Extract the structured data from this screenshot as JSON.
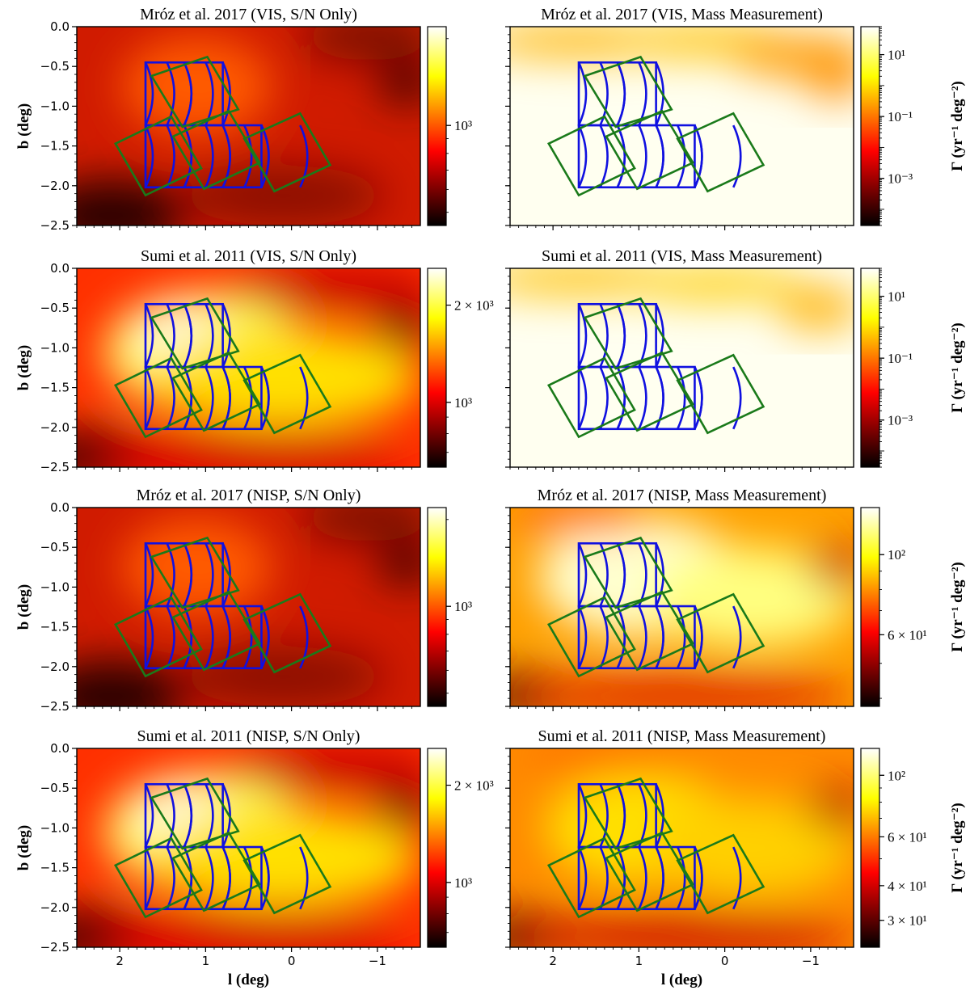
{
  "chart_data": {
    "type": "heatmap",
    "xlabel": "l (deg)",
    "ylabel": "b (deg)",
    "colorbar_label": "Γ (yr⁻¹ deg⁻²)",
    "xlim": [
      2.5,
      -1.5
    ],
    "ylim": [
      -2.5,
      0.0
    ],
    "x_ticks": [
      2,
      1,
      0,
      -1
    ],
    "x_tick_labels": [
      "2",
      "1",
      "0",
      "−1"
    ],
    "y_ticks": [
      0.0,
      -0.5,
      -1.0,
      -1.5,
      -2.0,
      -2.5
    ],
    "y_tick_labels": [
      "0.0",
      "−0.5",
      "−1.0",
      "−1.5",
      "−2.0",
      "−2.5"
    ],
    "colormap": "hot",
    "field_outlines": {
      "blue_color": "#1010e0",
      "green_color": "#1a7a1a"
    },
    "panels": [
      {
        "title": "Mróz et al. 2017 (VIS, S/N Only)",
        "colorbar_ticks": [
          {
            "value": 1000,
            "label": "10³"
          }
        ],
        "colorbar_log_range": [
          450,
          2200
        ],
        "colorbar_label_shown": false
      },
      {
        "title": "Mróz et al. 2017 (VIS, Mass Measurement)",
        "colorbar_ticks": [
          {
            "value": 10,
            "label": "10¹"
          },
          {
            "value": 0.1,
            "label": "10⁻¹"
          },
          {
            "value": 0.001,
            "label": "10⁻³"
          }
        ],
        "colorbar_log_range": [
          3e-05,
          80
        ],
        "colorbar_label_shown": true
      },
      {
        "title": "Sumi et al. 2011 (VIS, S/N Only)",
        "colorbar_ticks": [
          {
            "value": 2000,
            "label": "2 × 10³"
          },
          {
            "value": 1000,
            "label": "10³"
          }
        ],
        "colorbar_log_range": [
          630,
          2600
        ],
        "colorbar_label_shown": false
      },
      {
        "title": "Sumi et al. 2011 (VIS, Mass Measurement)",
        "colorbar_ticks": [
          {
            "value": 10,
            "label": "10¹"
          },
          {
            "value": 0.1,
            "label": "10⁻¹"
          },
          {
            "value": 0.001,
            "label": "10⁻³"
          }
        ],
        "colorbar_log_range": [
          3e-05,
          80
        ],
        "colorbar_label_shown": true
      },
      {
        "title": "Mróz et al. 2017 (NISP, S/N Only)",
        "colorbar_ticks": [
          {
            "value": 1000,
            "label": "10³"
          }
        ],
        "colorbar_log_range": [
          450,
          2200
        ],
        "colorbar_label_shown": false
      },
      {
        "title": "Mróz et al. 2017 (NISP, Mass Measurement)",
        "colorbar_ticks": [
          {
            "value": 100,
            "label": "10²"
          },
          {
            "value": 60,
            "label": "6 × 10¹"
          }
        ],
        "colorbar_log_range": [
          38,
          135
        ],
        "colorbar_label_shown": true
      },
      {
        "title": "Sumi et al. 2011 (NISP, S/N Only)",
        "colorbar_ticks": [
          {
            "value": 2000,
            "label": "2 × 10³"
          },
          {
            "value": 1000,
            "label": "10³"
          }
        ],
        "colorbar_log_range": [
          630,
          2600
        ],
        "colorbar_label_shown": false
      },
      {
        "title": "Sumi et al. 2011 (NISP, Mass Measurement)",
        "colorbar_ticks": [
          {
            "value": 100,
            "label": "10²"
          },
          {
            "value": 60,
            "label": "6 × 10¹"
          },
          {
            "value": 40,
            "label": "4 × 10¹"
          },
          {
            "value": 30,
            "label": "3 × 10¹"
          }
        ],
        "colorbar_log_range": [
          24,
          125
        ],
        "colorbar_label_shown": true
      }
    ]
  }
}
